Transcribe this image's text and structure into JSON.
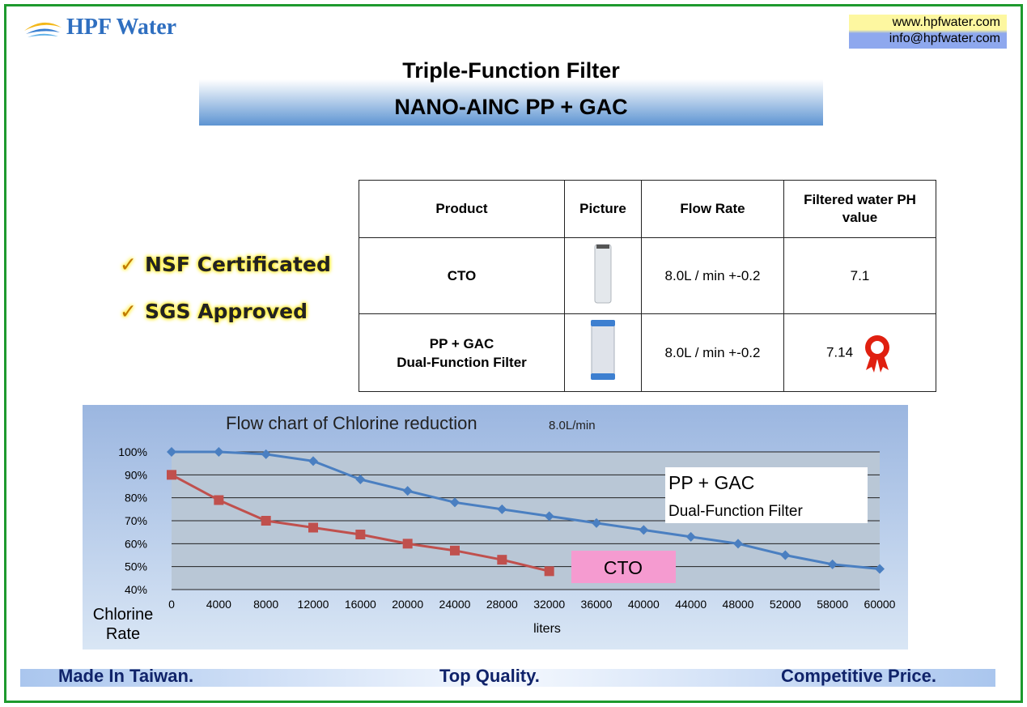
{
  "header": {
    "logo": "HPF Water",
    "website": "www.hpfwater.com",
    "email": "info@hpfwater.com",
    "title": "Triple-Function Filter",
    "subtitle": "NANO-AINC PP + GAC"
  },
  "badges": [
    "NSF Certificated",
    "SGS Approved"
  ],
  "table": {
    "columns": [
      "Product",
      "Picture",
      "Flow Rate",
      "Filtered water PH value"
    ],
    "rows": [
      {
        "product": [
          "CTO"
        ],
        "flow_rate": "8.0L / min +-0.2",
        "ph": "7.1"
      },
      {
        "product": [
          "PP + GAC",
          "Dual-Function Filter"
        ],
        "flow_rate": "8.0L / min +-0.2",
        "ph": "7.14"
      }
    ]
  },
  "chart_data": {
    "type": "line",
    "title": "Flow chart of Chlorine reduction",
    "subtitle": "8.0L/min",
    "categories": [
      "0",
      "4000",
      "8000",
      "12000",
      "16000",
      "20000",
      "24000",
      "28000",
      "32000",
      "36000",
      "40000",
      "44000",
      "48000",
      "52000",
      "58000",
      "60000"
    ],
    "series": [
      {
        "name": "PP + GAC",
        "description": "Dual-Function Filter",
        "color": "#4a7fc1",
        "marker": "diamond",
        "values": [
          100,
          100,
          99,
          96,
          88,
          83,
          78,
          75,
          72,
          69,
          66,
          63,
          60,
          55,
          51,
          49
        ]
      },
      {
        "name": "CTO",
        "color": "#c0504d",
        "marker": "square",
        "values": [
          90,
          79,
          70,
          67,
          64,
          60,
          57,
          53,
          48,
          null,
          null,
          null,
          null,
          null,
          null,
          null
        ]
      }
    ],
    "ylim": [
      40,
      100
    ],
    "yticks": [
      {
        "value": 40,
        "label": "40%"
      },
      {
        "value": 50,
        "label": "50%"
      },
      {
        "value": 60,
        "label": "60%"
      },
      {
        "value": 70,
        "label": "70%"
      },
      {
        "value": 80,
        "label": "80%"
      },
      {
        "value": 90,
        "label": "90%"
      },
      {
        "value": 100,
        "label": "100%"
      }
    ],
    "grid": true,
    "ylabel": "Chlorine Rate",
    "xlabel": "liters"
  },
  "footer": [
    "Made In Taiwan.",
    "Top Quality.",
    "Competitive Price."
  ]
}
